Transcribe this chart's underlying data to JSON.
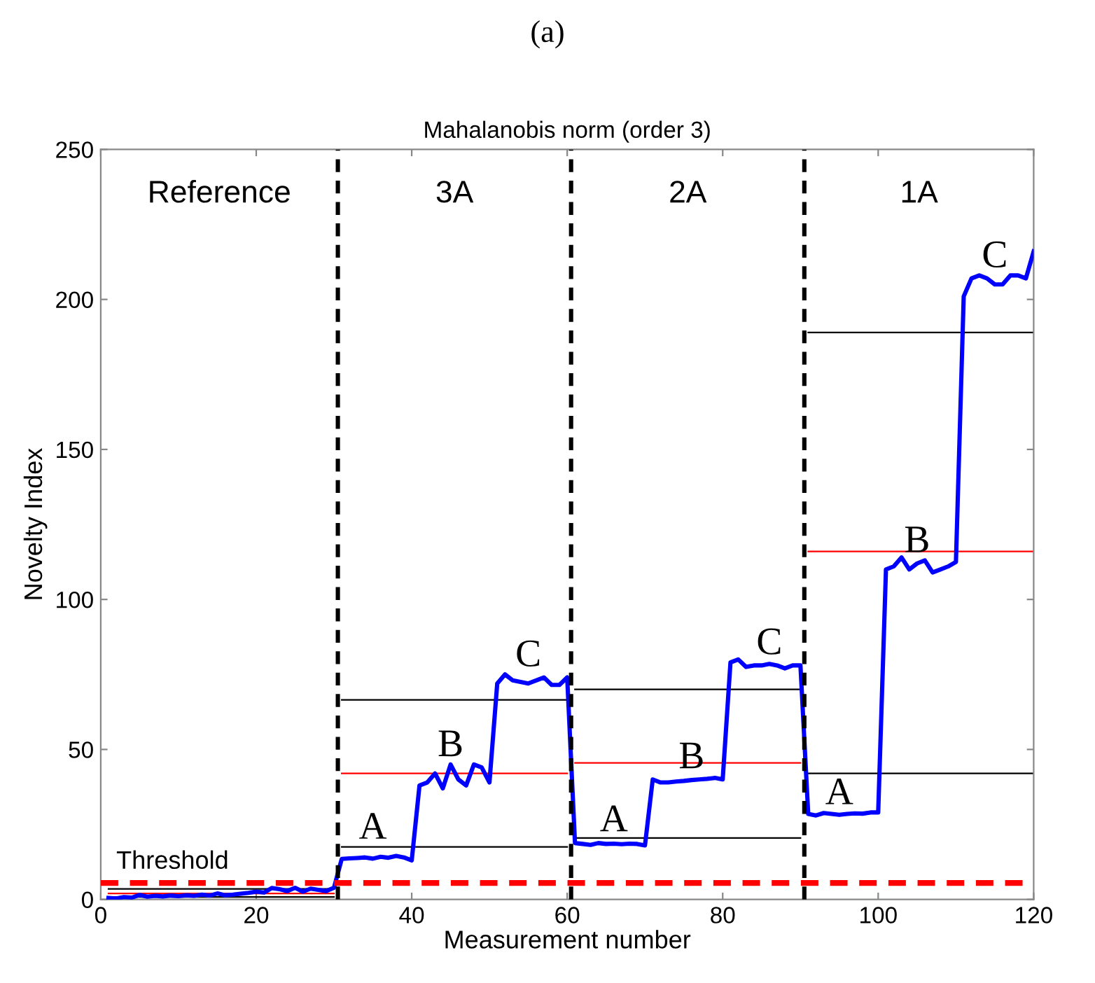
{
  "chart_data": {
    "type": "line",
    "title": "Mahalanobis norm (order 3)",
    "xlabel": "Measurement number",
    "ylabel": "Novelty Index",
    "xlim": [
      0,
      120
    ],
    "ylim": [
      0,
      250
    ],
    "xticks": [
      0,
      20,
      40,
      60,
      80,
      100,
      120
    ],
    "yticks": [
      0,
      50,
      100,
      150,
      200,
      250
    ],
    "grid": false,
    "legend": false,
    "marker": "none",
    "series": [
      {
        "color": "#0000ff",
        "line_style": "solid",
        "x": [
          1,
          2,
          3,
          4,
          5,
          6,
          7,
          8,
          9,
          10,
          11,
          12,
          13,
          14,
          15,
          16,
          17,
          18,
          19,
          20,
          21,
          22,
          23,
          24,
          25,
          26,
          27,
          28,
          29,
          30,
          31,
          32,
          33,
          34,
          35,
          36,
          37,
          38,
          39,
          40,
          41,
          42,
          43,
          44,
          45,
          46,
          47,
          48,
          49,
          50,
          51,
          52,
          53,
          54,
          55,
          56,
          57,
          58,
          59,
          60,
          61,
          62,
          63,
          64,
          65,
          66,
          67,
          68,
          69,
          70,
          71,
          72,
          73,
          74,
          75,
          76,
          77,
          78,
          79,
          80,
          81,
          82,
          83,
          84,
          85,
          86,
          87,
          88,
          89,
          90,
          91,
          92,
          93,
          94,
          95,
          96,
          97,
          98,
          99,
          100,
          101,
          102,
          103,
          104,
          105,
          106,
          107,
          108,
          109,
          110,
          111,
          112,
          113,
          114,
          115,
          116,
          117,
          118,
          119,
          120
        ],
        "values": [
          0.5,
          0.3,
          0.8,
          0.6,
          1.5,
          0.9,
          1.2,
          1,
          1.3,
          1.1,
          1.4,
          1.2,
          1.6,
          1.3,
          2,
          1.4,
          1.6,
          1.9,
          2.2,
          2.6,
          2.3,
          3.8,
          3.4,
          2.8,
          3.9,
          2.6,
          3.6,
          3.2,
          2.8,
          3.9,
          13.5,
          13.7,
          13.8,
          14,
          13.6,
          14.2,
          13.9,
          14.5,
          14,
          13,
          38,
          39,
          42,
          37,
          45,
          40,
          38,
          45,
          44,
          39,
          72,
          75,
          73,
          72.5,
          72,
          73,
          74,
          71.5,
          71.5,
          74,
          18.8,
          18.5,
          18.2,
          18.8,
          18.5,
          18.6,
          18.4,
          18.6,
          18.5,
          18,
          40,
          39,
          39,
          39.3,
          39.5,
          39.8,
          40,
          40.2,
          40.5,
          40,
          79,
          80,
          77.5,
          78,
          78,
          78.5,
          78,
          77,
          78,
          78,
          28.5,
          28,
          28.8,
          28.5,
          28.2,
          28.5,
          28.7,
          28.6,
          29,
          29,
          110,
          111,
          114,
          110,
          112,
          113,
          109,
          110,
          111,
          112.5,
          201,
          207,
          208,
          207,
          205,
          205,
          208,
          208,
          207,
          216
        ]
      },
      {
        "color": "#000000",
        "line_style": "solid",
        "x": [
          1,
          30
        ],
        "values": [
          3.5,
          3.5
        ]
      },
      {
        "color": "#ff0000",
        "line_style": "solid",
        "x": [
          1,
          30
        ],
        "values": [
          2,
          2
        ]
      },
      {
        "color": "#000000",
        "line_style": "solid",
        "x": [
          1,
          30
        ],
        "values": [
          0.8,
          0.8
        ]
      },
      {
        "color": "#000000",
        "line_style": "solid",
        "x": [
          31,
          60
        ],
        "values": [
          17.5,
          17.5
        ]
      },
      {
        "color": "#ff0000",
        "line_style": "solid",
        "x": [
          31,
          60
        ],
        "values": [
          42,
          42
        ]
      },
      {
        "color": "#000000",
        "line_style": "solid",
        "x": [
          31,
          60
        ],
        "values": [
          66.5,
          66.5
        ]
      },
      {
        "color": "#000000",
        "line_style": "solid",
        "x": [
          61,
          90
        ],
        "values": [
          20.5,
          20.5
        ]
      },
      {
        "color": "#ff0000",
        "line_style": "solid",
        "x": [
          61,
          90
        ],
        "values": [
          45.5,
          45.5
        ]
      },
      {
        "color": "#000000",
        "line_style": "solid",
        "x": [
          61,
          90
        ],
        "values": [
          70,
          70
        ]
      },
      {
        "color": "#000000",
        "line_style": "solid",
        "x": [
          91,
          120
        ],
        "values": [
          42,
          42
        ]
      },
      {
        "color": "#ff0000",
        "line_style": "solid",
        "x": [
          91,
          120
        ],
        "values": [
          116,
          116
        ]
      },
      {
        "color": "#000000",
        "line_style": "solid",
        "x": [
          91,
          120
        ],
        "values": [
          189,
          189
        ]
      }
    ],
    "ref_lines": [
      {
        "axis": "y",
        "value": 5.5,
        "label": "Threshold",
        "color": "#ff0000",
        "line_style": "dashed"
      },
      {
        "axis": "x",
        "value": 30.5,
        "color": "#000000",
        "line_style": "dashed"
      },
      {
        "axis": "x",
        "value": 60.5,
        "color": "#000000",
        "line_style": "dashed"
      },
      {
        "axis": "x",
        "value": 90.5,
        "color": "#000000",
        "line_style": "dashed"
      }
    ],
    "annotations": [
      "(a)",
      "Reference",
      "3A",
      "2A",
      "1A",
      {
        "text": "A",
        "x": 35,
        "y": 17.5
      },
      {
        "text": "B",
        "x": 45,
        "y": 45
      },
      {
        "text": "C",
        "x": 55,
        "y": 75
      },
      {
        "text": "A",
        "x": 66,
        "y": 20
      },
      {
        "text": "B",
        "x": 76,
        "y": 41
      },
      {
        "text": "C",
        "x": 86,
        "y": 79
      },
      {
        "text": "A",
        "x": 95,
        "y": 29
      },
      {
        "text": "B",
        "x": 105,
        "y": 113
      },
      {
        "text": "C",
        "x": 115,
        "y": 208
      }
    ]
  }
}
